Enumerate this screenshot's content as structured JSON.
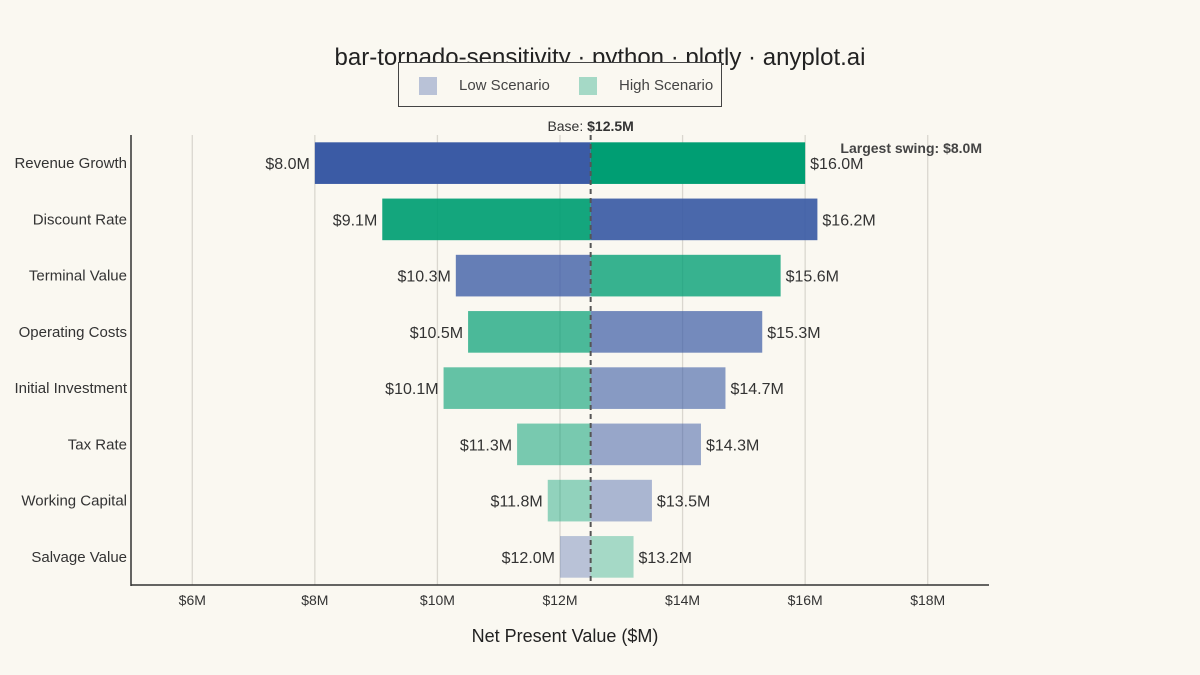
{
  "chart_data": {
    "type": "bar",
    "orientation": "horizontal",
    "subtype": "tornado",
    "title": "bar-tornado-sensitivity · python · plotly · anyplot.ai",
    "xlabel": "Net Present Value ($M)",
    "ylabel": "",
    "xlim": [
      5,
      19
    ],
    "xticks": [
      6,
      8,
      10,
      12,
      14,
      16,
      18
    ],
    "xtick_labels": [
      "$6M",
      "$8M",
      "$10M",
      "$12M",
      "$14M",
      "$16M",
      "$18M"
    ],
    "grid": "vertical",
    "legend_position": "top-center",
    "base": {
      "prefix": "Base: ",
      "label": "$12.5M",
      "value": 12.5
    },
    "annotation": "Largest swing: $8.0M",
    "categories": [
      "Revenue Growth",
      "Discount Rate",
      "Terminal Value",
      "Operating Costs",
      "Initial Investment",
      "Tax Rate",
      "Working Capital",
      "Salvage Value"
    ],
    "series": [
      {
        "name": "Low Scenario",
        "color": "#3B5BA5",
        "values": [
          8.0,
          16.2,
          10.3,
          15.3,
          14.7,
          14.3,
          13.5,
          12.0
        ],
        "labels": [
          "$8.0M",
          "$16.2M",
          "$10.3M",
          "$15.3M",
          "$14.7M",
          "$14.3M",
          "$13.5M",
          "$12.0M"
        ]
      },
      {
        "name": "High Scenario",
        "color": "#009E73",
        "values": [
          16.0,
          9.1,
          15.6,
          10.5,
          10.1,
          11.3,
          11.8,
          13.2
        ],
        "labels": [
          "$16.0M",
          "$9.1M",
          "$15.6M",
          "$10.5M",
          "$10.1M",
          "$11.3M",
          "$11.8M",
          "$13.2M"
        ]
      }
    ],
    "bar_opacity": [
      1.0,
      0.92,
      0.78,
      0.7,
      0.6,
      0.52,
      0.42,
      0.34
    ],
    "legend_opacity": 0.34
  }
}
